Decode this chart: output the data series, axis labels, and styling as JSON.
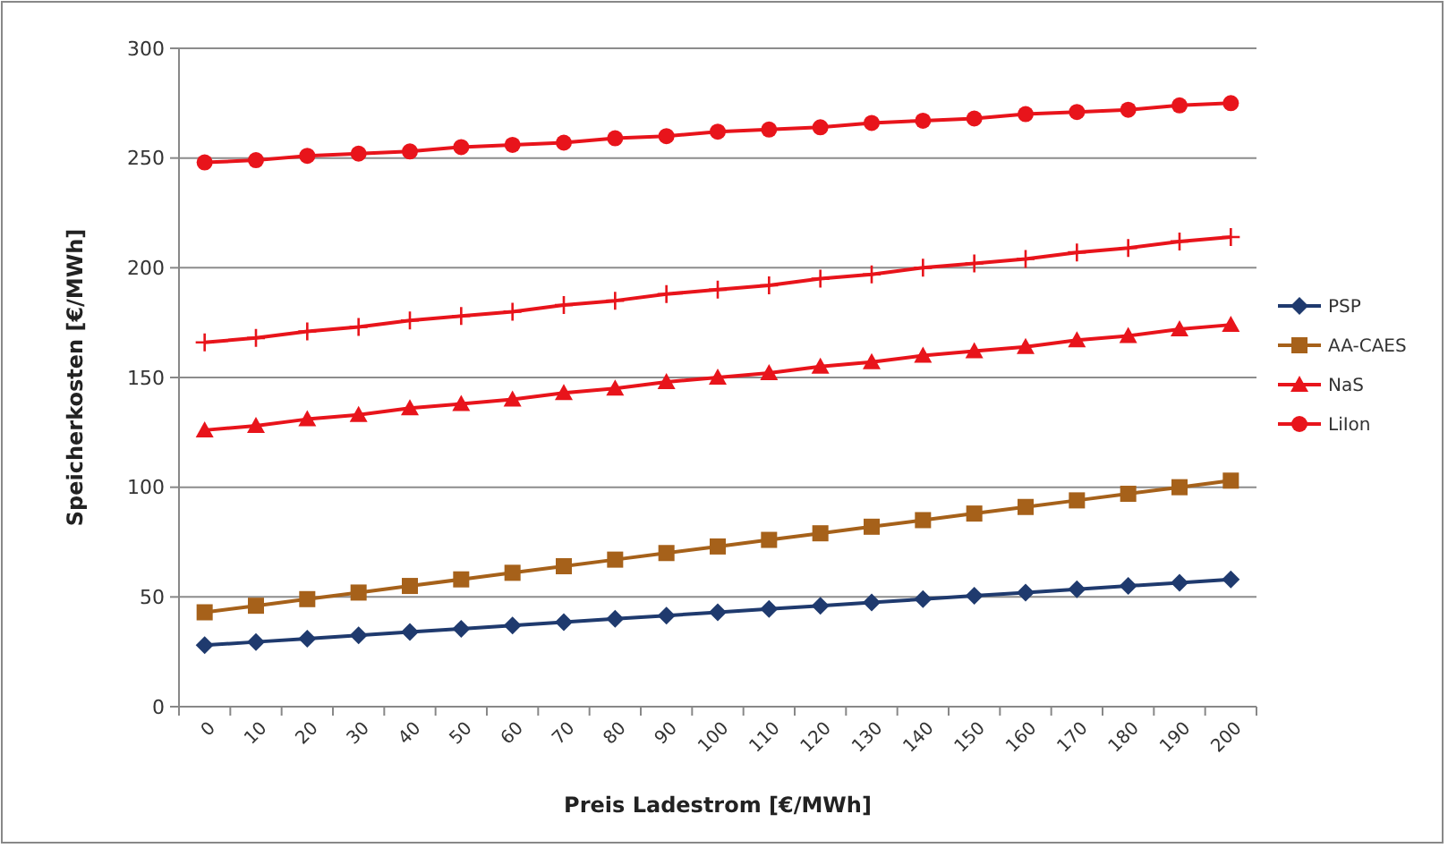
{
  "chart_data": {
    "type": "line",
    "xlabel": "Preis Ladestrom [€/MWh]",
    "ylabel": "Speicherkosten [€/MWh]",
    "categories": [
      "0",
      "10",
      "20",
      "30",
      "40",
      "50",
      "60",
      "70",
      "80",
      "90",
      "100",
      "110",
      "120",
      "130",
      "140",
      "150",
      "160",
      "170",
      "180",
      "190",
      "200"
    ],
    "ylim": [
      0,
      300
    ],
    "yticks": [
      0,
      50,
      100,
      150,
      200,
      250,
      300
    ],
    "grid": "y",
    "legend": "right",
    "series": [
      {
        "name": "PSP",
        "color": "#1f3a6e",
        "marker": "diamond",
        "values": [
          28,
          29.5,
          31,
          32.5,
          34,
          35.5,
          37,
          38.5,
          40,
          41.5,
          43,
          44.5,
          46,
          47.5,
          49,
          50.5,
          52,
          53.5,
          55,
          56.5,
          58
        ]
      },
      {
        "name": "AA-CAES",
        "color": "#a6611a",
        "marker": "square",
        "values": [
          43,
          46,
          49,
          52,
          55,
          58,
          61,
          64,
          67,
          70,
          73,
          76,
          79,
          82,
          85,
          88,
          91,
          94,
          97,
          100,
          103
        ]
      },
      {
        "name": "NaS",
        "color": "#e8141b",
        "marker": "triangle",
        "values": [
          126,
          128,
          131,
          133,
          136,
          138,
          140,
          143,
          145,
          148,
          150,
          152,
          155,
          157,
          160,
          162,
          164,
          167,
          169,
          172,
          174
        ]
      },
      {
        "color": "#e8141b",
        "marker": "cross",
        "values": [
          166,
          168,
          171,
          173,
          176,
          178,
          180,
          183,
          185,
          188,
          190,
          192,
          195,
          197,
          200,
          202,
          204,
          207,
          209,
          212,
          214
        ]
      },
      {
        "name": "LiIon",
        "color": "#e8141b",
        "marker": "circle",
        "values": [
          248,
          249,
          251,
          252,
          253,
          255,
          256,
          257,
          259,
          260,
          262,
          263,
          264,
          266,
          267,
          268,
          270,
          271,
          272,
          274,
          275
        ]
      }
    ]
  }
}
